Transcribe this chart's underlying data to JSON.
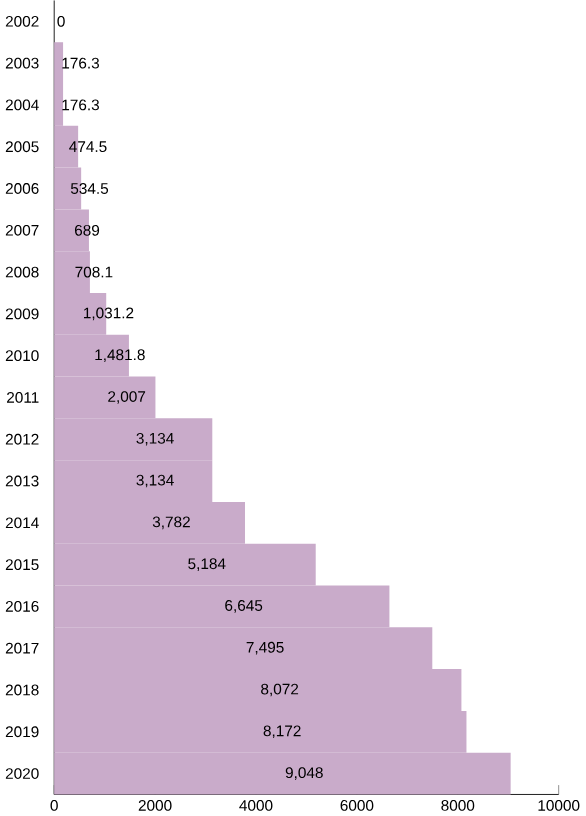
{
  "chart_data": {
    "type": "bar",
    "orientation": "horizontal",
    "categories": [
      "2002",
      "2003",
      "2004",
      "2005",
      "2006",
      "2007",
      "2008",
      "2009",
      "2010",
      "2011",
      "2012",
      "2013",
      "2014",
      "2015",
      "2016",
      "2017",
      "2018",
      "2019",
      "2020"
    ],
    "values": [
      0,
      176.3,
      176.3,
      474.5,
      534.5,
      689,
      708.1,
      1031.2,
      1481.8,
      2007,
      3134,
      3134,
      3782,
      5184,
      6645,
      7495,
      8072,
      8172,
      9048
    ],
    "value_labels": [
      "0",
      "176.3",
      "176.3",
      "474.5",
      "534.5",
      "689",
      "708.1",
      "1,031.2",
      "1,481.8",
      "2,007",
      "3,134",
      "3,134",
      "3,782",
      "5,184",
      "6,645",
      "7,495",
      "8,072",
      "8,172",
      "9,048"
    ],
    "color": "#c9abca",
    "xlim": [
      0,
      10000
    ],
    "xticks": [
      0,
      2000,
      4000,
      6000,
      8000,
      10000
    ]
  }
}
